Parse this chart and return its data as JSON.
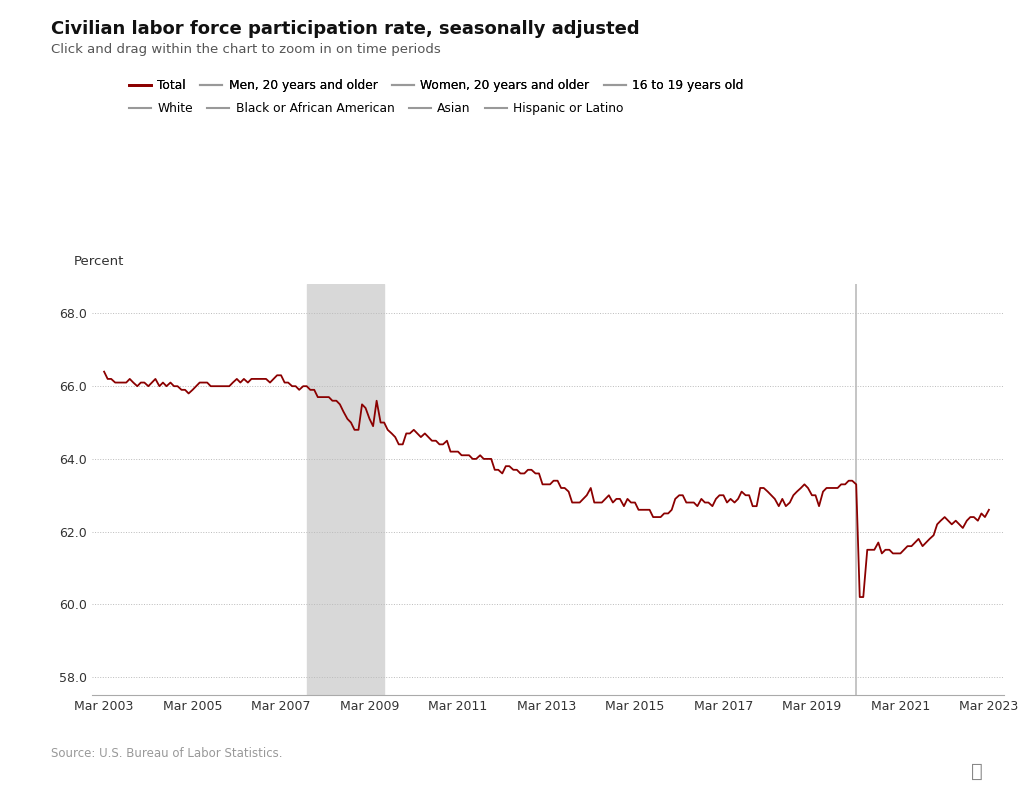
{
  "title": "Civilian labor force participation rate, seasonally adjusted",
  "subtitle": "Click and drag within the chart to zoom in on time periods",
  "ylabel": "Percent",
  "source": "Source: U.S. Bureau of Labor Statistics.",
  "background_color": "#ffffff",
  "line_color": "#8B0000",
  "recession1_start": 2007.75,
  "recession1_end": 2009.5,
  "vline_covid": 2020.17,
  "recession_color": "#d8d8d8",
  "grid_color": "#bbbbbb",
  "yticks": [
    58.0,
    60.0,
    62.0,
    64.0,
    66.0,
    68.0
  ],
  "ylim": [
    57.5,
    68.8
  ],
  "xtick_labels": [
    "Mar 2003",
    "Mar 2005",
    "Mar 2007",
    "Mar 2009",
    "Mar 2011",
    "Mar 2013",
    "Mar 2015",
    "Mar 2017",
    "Mar 2019",
    "Mar 2021",
    "Mar 2023"
  ],
  "xtick_positions": [
    2003.17,
    2005.17,
    2007.17,
    2009.17,
    2011.17,
    2013.17,
    2015.17,
    2017.17,
    2019.17,
    2021.17,
    2023.17
  ],
  "legend_row1": [
    {
      "label": "Total",
      "color": "#8B0000",
      "lw": 2.0
    },
    {
      "label": "Men, 20 years and older",
      "color": "#999999",
      "lw": 1.5
    },
    {
      "label": "Women, 20 years and older",
      "color": "#999999",
      "lw": 1.5
    },
    {
      "label": "16 to 19 years old",
      "color": "#999999",
      "lw": 1.5
    }
  ],
  "legend_row2": [
    {
      "label": "White",
      "color": "#999999",
      "lw": 1.5
    },
    {
      "label": "Black or African American",
      "color": "#999999",
      "lw": 1.5
    },
    {
      "label": "Asian",
      "color": "#999999",
      "lw": 1.5
    },
    {
      "label": "Hispanic or Latino",
      "color": "#999999",
      "lw": 1.5
    }
  ],
  "data": {
    "dates": [
      2003.17,
      2003.25,
      2003.33,
      2003.42,
      2003.5,
      2003.58,
      2003.67,
      2003.75,
      2003.83,
      2003.92,
      2004.0,
      2004.08,
      2004.17,
      2004.25,
      2004.33,
      2004.42,
      2004.5,
      2004.58,
      2004.67,
      2004.75,
      2004.83,
      2004.92,
      2005.0,
      2005.08,
      2005.17,
      2005.25,
      2005.33,
      2005.42,
      2005.5,
      2005.58,
      2005.67,
      2005.75,
      2005.83,
      2005.92,
      2006.0,
      2006.08,
      2006.17,
      2006.25,
      2006.33,
      2006.42,
      2006.5,
      2006.58,
      2006.67,
      2006.75,
      2006.83,
      2006.92,
      2007.0,
      2007.08,
      2007.17,
      2007.25,
      2007.33,
      2007.42,
      2007.5,
      2007.58,
      2007.67,
      2007.75,
      2007.83,
      2007.92,
      2008.0,
      2008.08,
      2008.17,
      2008.25,
      2008.33,
      2008.42,
      2008.5,
      2008.58,
      2008.67,
      2008.75,
      2008.83,
      2008.92,
      2009.0,
      2009.08,
      2009.17,
      2009.25,
      2009.33,
      2009.42,
      2009.5,
      2009.58,
      2009.67,
      2009.75,
      2009.83,
      2009.92,
      2010.0,
      2010.08,
      2010.17,
      2010.25,
      2010.33,
      2010.42,
      2010.5,
      2010.58,
      2010.67,
      2010.75,
      2010.83,
      2010.92,
      2011.0,
      2011.08,
      2011.17,
      2011.25,
      2011.33,
      2011.42,
      2011.5,
      2011.58,
      2011.67,
      2011.75,
      2011.83,
      2011.92,
      2012.0,
      2012.08,
      2012.17,
      2012.25,
      2012.33,
      2012.42,
      2012.5,
      2012.58,
      2012.67,
      2012.75,
      2012.83,
      2012.92,
      2013.0,
      2013.08,
      2013.17,
      2013.25,
      2013.33,
      2013.42,
      2013.5,
      2013.58,
      2013.67,
      2013.75,
      2013.83,
      2013.92,
      2014.0,
      2014.08,
      2014.17,
      2014.25,
      2014.33,
      2014.42,
      2014.5,
      2014.58,
      2014.67,
      2014.75,
      2014.83,
      2014.92,
      2015.0,
      2015.08,
      2015.17,
      2015.25,
      2015.33,
      2015.42,
      2015.5,
      2015.58,
      2015.67,
      2015.75,
      2015.83,
      2015.92,
      2016.0,
      2016.08,
      2016.17,
      2016.25,
      2016.33,
      2016.42,
      2016.5,
      2016.58,
      2016.67,
      2016.75,
      2016.83,
      2016.92,
      2017.0,
      2017.08,
      2017.17,
      2017.25,
      2017.33,
      2017.42,
      2017.5,
      2017.58,
      2017.67,
      2017.75,
      2017.83,
      2017.92,
      2018.0,
      2018.08,
      2018.17,
      2018.25,
      2018.33,
      2018.42,
      2018.5,
      2018.58,
      2018.67,
      2018.75,
      2018.83,
      2018.92,
      2019.0,
      2019.08,
      2019.17,
      2019.25,
      2019.33,
      2019.42,
      2019.5,
      2019.58,
      2019.67,
      2019.75,
      2019.83,
      2019.92,
      2020.0,
      2020.08,
      2020.17,
      2020.25,
      2020.33,
      2020.42,
      2020.5,
      2020.58,
      2020.67,
      2020.75,
      2020.83,
      2020.92,
      2021.0,
      2021.08,
      2021.17,
      2021.25,
      2021.33,
      2021.42,
      2021.5,
      2021.58,
      2021.67,
      2021.75,
      2021.83,
      2021.92,
      2022.0,
      2022.08,
      2022.17,
      2022.25,
      2022.33,
      2022.42,
      2022.5,
      2022.58,
      2022.67,
      2022.75,
      2022.83,
      2022.92,
      2023.0,
      2023.08,
      2023.17
    ],
    "values": [
      66.4,
      66.2,
      66.2,
      66.1,
      66.1,
      66.1,
      66.1,
      66.2,
      66.1,
      66.0,
      66.1,
      66.1,
      66.0,
      66.1,
      66.2,
      66.0,
      66.1,
      66.0,
      66.1,
      66.0,
      66.0,
      65.9,
      65.9,
      65.8,
      65.9,
      66.0,
      66.1,
      66.1,
      66.1,
      66.0,
      66.0,
      66.0,
      66.0,
      66.0,
      66.0,
      66.1,
      66.2,
      66.1,
      66.2,
      66.1,
      66.2,
      66.2,
      66.2,
      66.2,
      66.2,
      66.1,
      66.2,
      66.3,
      66.3,
      66.1,
      66.1,
      66.0,
      66.0,
      65.9,
      66.0,
      66.0,
      65.9,
      65.9,
      65.7,
      65.7,
      65.7,
      65.7,
      65.6,
      65.6,
      65.5,
      65.3,
      65.1,
      65.0,
      64.8,
      64.8,
      65.5,
      65.4,
      65.1,
      64.9,
      65.6,
      65.0,
      65.0,
      64.8,
      64.7,
      64.6,
      64.4,
      64.4,
      64.7,
      64.7,
      64.8,
      64.7,
      64.6,
      64.7,
      64.6,
      64.5,
      64.5,
      64.4,
      64.4,
      64.5,
      64.2,
      64.2,
      64.2,
      64.1,
      64.1,
      64.1,
      64.0,
      64.0,
      64.1,
      64.0,
      64.0,
      64.0,
      63.7,
      63.7,
      63.6,
      63.8,
      63.8,
      63.7,
      63.7,
      63.6,
      63.6,
      63.7,
      63.7,
      63.6,
      63.6,
      63.3,
      63.3,
      63.3,
      63.4,
      63.4,
      63.2,
      63.2,
      63.1,
      62.8,
      62.8,
      62.8,
      62.9,
      63.0,
      63.2,
      62.8,
      62.8,
      62.8,
      62.9,
      63.0,
      62.8,
      62.9,
      62.9,
      62.7,
      62.9,
      62.8,
      62.8,
      62.6,
      62.6,
      62.6,
      62.6,
      62.4,
      62.4,
      62.4,
      62.5,
      62.5,
      62.6,
      62.9,
      63.0,
      63.0,
      62.8,
      62.8,
      62.8,
      62.7,
      62.9,
      62.8,
      62.8,
      62.7,
      62.9,
      63.0,
      63.0,
      62.8,
      62.9,
      62.8,
      62.9,
      63.1,
      63.0,
      63.0,
      62.7,
      62.7,
      63.2,
      63.2,
      63.1,
      63.0,
      62.9,
      62.7,
      62.9,
      62.7,
      62.8,
      63.0,
      63.1,
      63.2,
      63.3,
      63.2,
      63.0,
      63.0,
      62.7,
      63.1,
      63.2,
      63.2,
      63.2,
      63.2,
      63.3,
      63.3,
      63.4,
      63.4,
      63.3,
      60.2,
      60.2,
      61.5,
      61.5,
      61.5,
      61.7,
      61.4,
      61.5,
      61.5,
      61.4,
      61.4,
      61.4,
      61.5,
      61.6,
      61.6,
      61.7,
      61.8,
      61.6,
      61.7,
      61.8,
      61.9,
      62.2,
      62.3,
      62.4,
      62.3,
      62.2,
      62.3,
      62.2,
      62.1,
      62.3,
      62.4,
      62.4,
      62.3,
      62.5,
      62.4,
      62.6
    ]
  }
}
